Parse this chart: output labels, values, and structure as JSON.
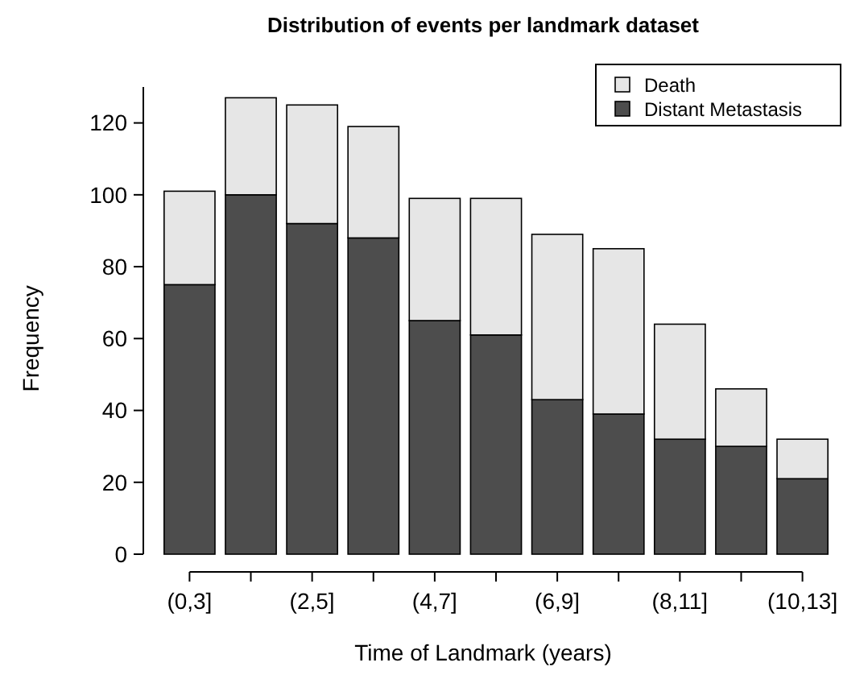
{
  "chart_data": {
    "type": "bar",
    "title": "Distribution of events per landmark dataset",
    "xlabel": "Time of Landmark (years)",
    "ylabel": "Frequency",
    "categories": [
      "(0,3]",
      null,
      "(2,5]",
      null,
      "(4,7]",
      null,
      "(6,9]",
      null,
      "(8,11]",
      null,
      "(10,13]"
    ],
    "stacked": true,
    "series": [
      {
        "name": "Distant Metastasis",
        "color": "#4d4d4d",
        "values": [
          75,
          100,
          92,
          88,
          65,
          61,
          43,
          39,
          32,
          30,
          21
        ]
      },
      {
        "name": "Death",
        "color": "#e6e6e6",
        "values": [
          26,
          27,
          33,
          31,
          34,
          38,
          46,
          46,
          32,
          16,
          11
        ]
      }
    ],
    "ylim": [
      0,
      130
    ],
    "yticks": [
      0,
      20,
      40,
      60,
      80,
      100,
      120
    ],
    "legend": "top right",
    "grid": false
  }
}
